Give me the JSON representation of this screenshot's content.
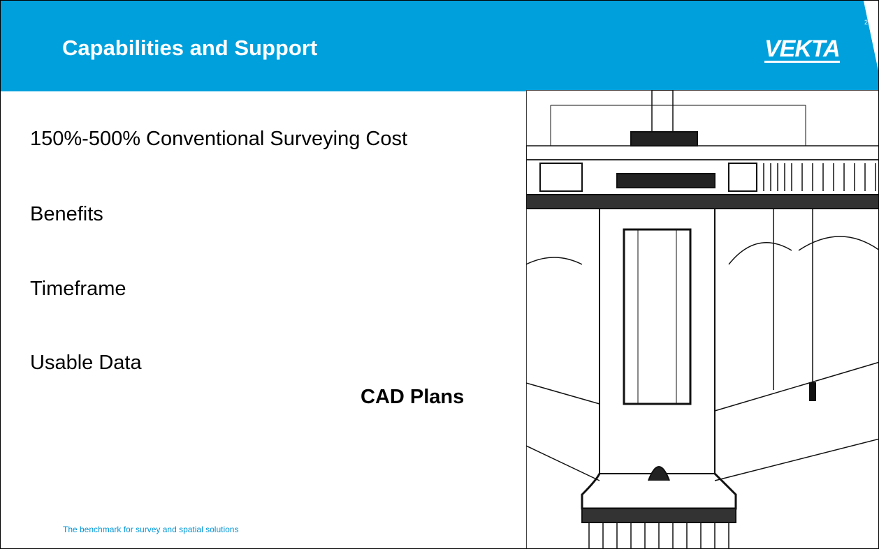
{
  "header": {
    "title": "Capabilities and Support",
    "logo": "VEKTA",
    "page_number": "27"
  },
  "bullets": [
    "150%-500% Conventional Surveying Cost",
    "Benefits",
    "Timeframe",
    "Usable Data"
  ],
  "image_caption": "CAD Plans",
  "footer": "The benchmark for survey and spatial solutions"
}
